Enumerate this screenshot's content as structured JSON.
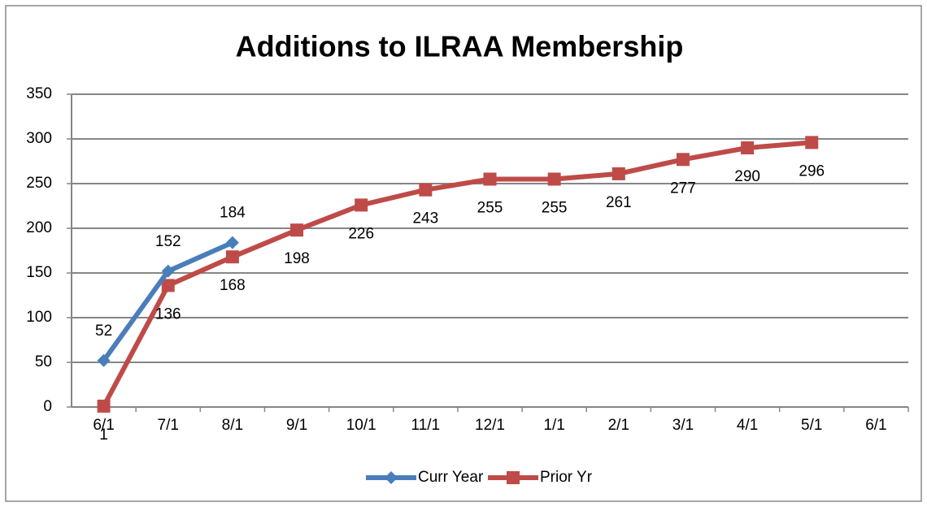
{
  "chart_data": {
    "type": "line",
    "title": "Additions to ILRAA Membership",
    "categories": [
      "6/1",
      "7/1",
      "8/1",
      "9/1",
      "10/1",
      "11/1",
      "12/1",
      "1/1",
      "2/1",
      "3/1",
      "4/1",
      "5/1",
      "6/1"
    ],
    "series": [
      {
        "name": "Curr Year",
        "color": "#4a7ebb",
        "marker": "diamond",
        "values": [
          52,
          152,
          184,
          null,
          null,
          null,
          null,
          null,
          null,
          null,
          null,
          null,
          null
        ]
      },
      {
        "name": "Prior Yr",
        "color": "#be4b48",
        "marker": "square",
        "values": [
          1,
          136,
          168,
          198,
          226,
          243,
          255,
          255,
          261,
          277,
          290,
          296,
          null
        ]
      }
    ],
    "ylim": [
      0,
      350
    ],
    "yticks": [
      0,
      50,
      100,
      150,
      200,
      250,
      300,
      350
    ],
    "grid": true,
    "legend": "bottom"
  }
}
